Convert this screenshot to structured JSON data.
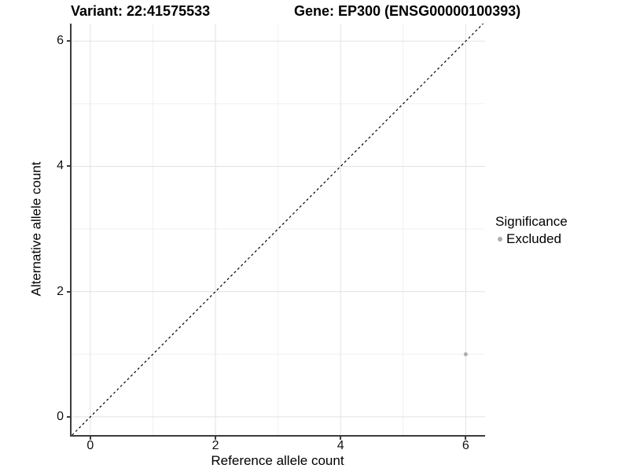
{
  "chart_data": {
    "type": "scatter",
    "titles": {
      "left": "Variant: 22:41575533",
      "right": "Gene: EP300 (ENSG00000100393)"
    },
    "xlabel": "Reference allele count",
    "ylabel": "Alternative allele count",
    "xlim": [
      -0.3,
      6.31
    ],
    "ylim": [
      -0.29,
      6.28
    ],
    "x_major_ticks": [
      0,
      2,
      4,
      6
    ],
    "y_major_ticks": [
      0,
      2,
      4,
      6
    ],
    "x_minor_ticks": [
      1,
      3,
      5
    ],
    "y_minor_ticks": [
      1,
      3,
      5
    ],
    "grid": "major and minor, light gray on white",
    "legend": {
      "title": "Significance",
      "position": "right",
      "entries": [
        {
          "label": "Excluded",
          "color": "#adadad"
        }
      ]
    },
    "series": [
      {
        "name": "Excluded",
        "marker": "circle",
        "color": "#b1b1b1",
        "points": [
          [
            6,
            1
          ]
        ]
      }
    ],
    "reference_line": {
      "type": "identity y=x",
      "style": "dashed",
      "color": "#000000",
      "from": -0.29,
      "to": 6.28
    }
  },
  "colors": {
    "axis_line": "#3c3c3c",
    "grid_major": "#e2e2e2",
    "grid_minor": "#f0f0f0",
    "text": "#000000",
    "background": "#ffffff"
  }
}
